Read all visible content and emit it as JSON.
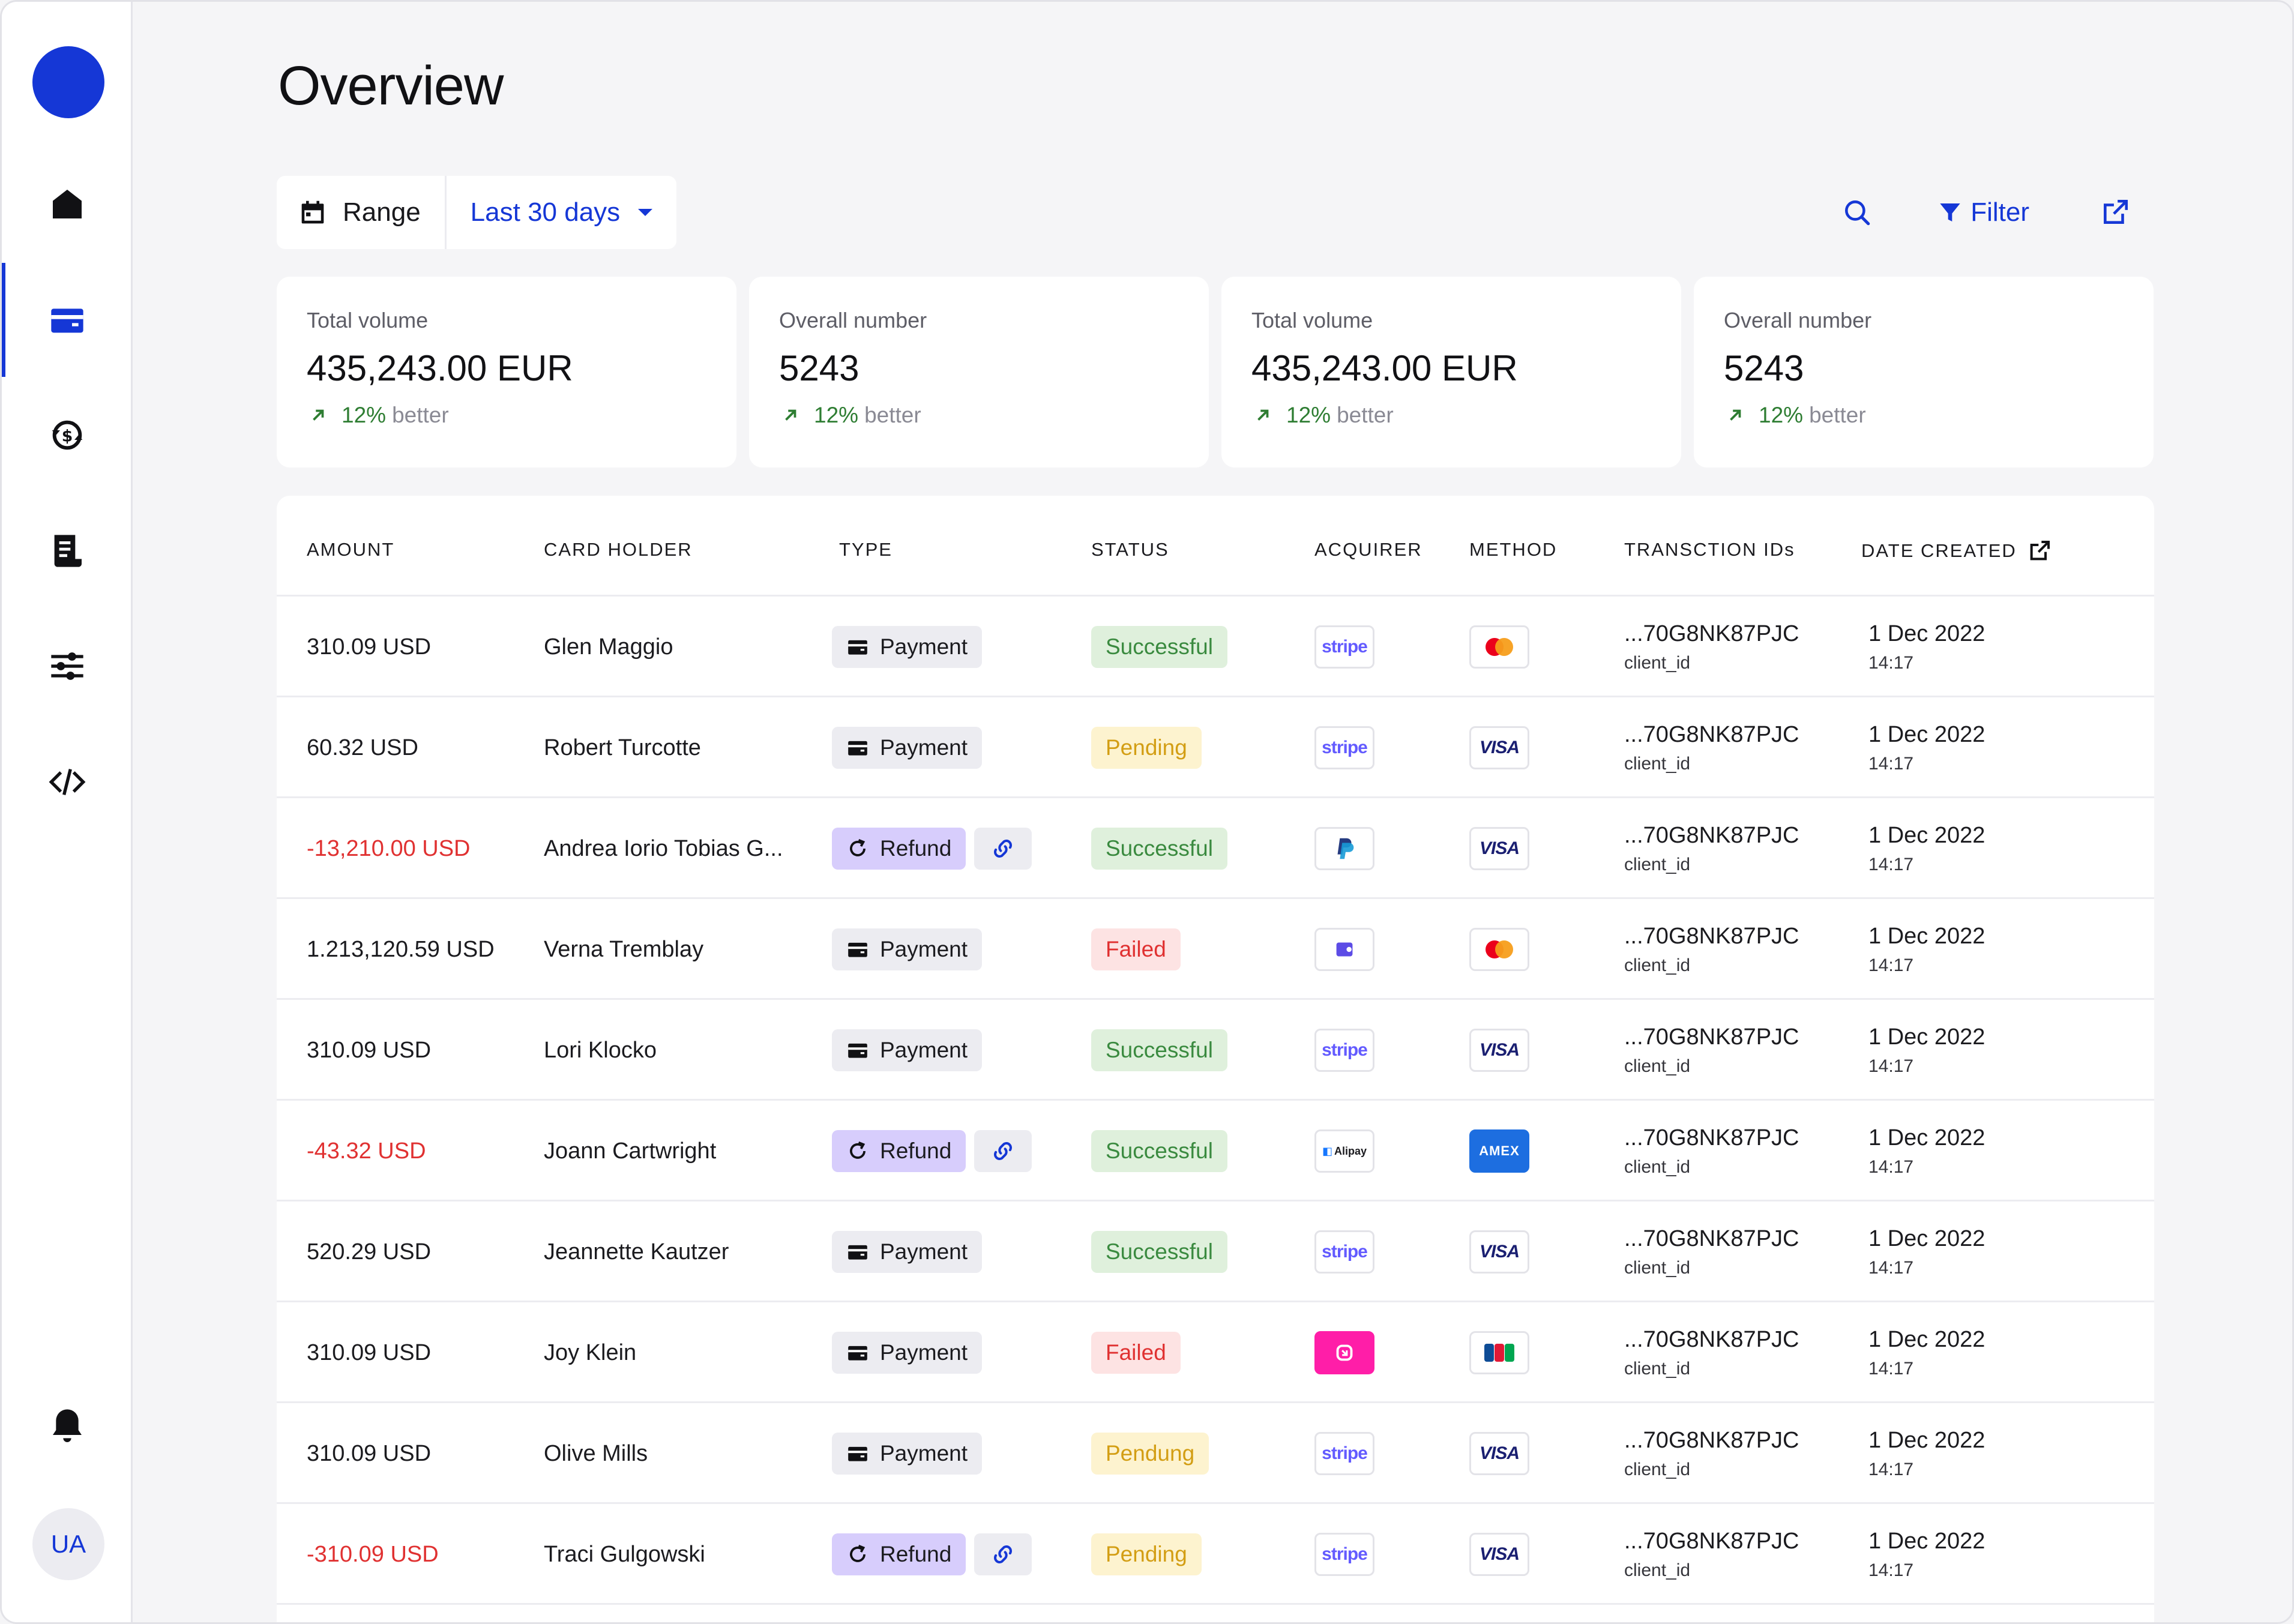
{
  "page": {
    "title": "Overview"
  },
  "sidebar": {
    "items": [
      {
        "name": "home-icon"
      },
      {
        "name": "wallet-icon",
        "active": true
      },
      {
        "name": "currency-exchange-icon"
      },
      {
        "name": "receipt-icon"
      },
      {
        "name": "sliders-icon"
      },
      {
        "name": "code-icon"
      }
    ],
    "notifications": "bell-icon",
    "avatar_initials": "UA"
  },
  "toolbar": {
    "range_label": "Range",
    "range_value": "Last 30 days",
    "filter_label": "Filter"
  },
  "stats": [
    {
      "label": "Total volume",
      "value": "435,243.00 EUR",
      "delta_pct": "12%",
      "delta_word": "better"
    },
    {
      "label": "Overall number",
      "value": "5243",
      "delta_pct": "12%",
      "delta_word": "better"
    },
    {
      "label": "Total volume",
      "value": "435,243.00 EUR",
      "delta_pct": "12%",
      "delta_word": "better"
    },
    {
      "label": "Overall number",
      "value": "5243",
      "delta_pct": "12%",
      "delta_word": "better"
    }
  ],
  "table": {
    "columns": [
      "AMOUNT",
      "CARD HOLDER",
      "TYPE",
      "STATUS",
      "ACQUIRER",
      "METHOD",
      "TRANSCTION IDs",
      "DATE CREATED"
    ],
    "rows": [
      {
        "amount": "310.09 USD",
        "negative": false,
        "holder": "Glen Maggio",
        "type": "Payment",
        "status": "Successful",
        "status_kind": "successful",
        "acquirer": "stripe",
        "method": "mastercard",
        "tx_id": "...70G8NK87PJC",
        "tx_sub": "client_id",
        "date": "1 Dec 2022",
        "time": "14:17"
      },
      {
        "amount": "60.32 USD",
        "negative": false,
        "holder": "Robert Turcotte",
        "type": "Payment",
        "status": "Pending",
        "status_kind": "pending",
        "acquirer": "stripe",
        "method": "visa",
        "tx_id": "...70G8NK87PJC",
        "tx_sub": "client_id",
        "date": "1 Dec 2022",
        "time": "14:17"
      },
      {
        "amount": "-13,210.00 USD",
        "negative": true,
        "holder": "Andrea Iorio Tobias G...",
        "type": "Refund",
        "status": "Successful",
        "status_kind": "successful",
        "acquirer": "paypal",
        "method": "visa",
        "tx_id": "...70G8NK87PJC",
        "tx_sub": "client_id",
        "date": "1 Dec 2022",
        "time": "14:17"
      },
      {
        "amount": "1.213,120.59 USD",
        "negative": false,
        "holder": "Verna Tremblay",
        "type": "Payment",
        "status": "Failed",
        "status_kind": "failed",
        "acquirer": "wallet",
        "method": "mastercard",
        "tx_id": "...70G8NK87PJC",
        "tx_sub": "client_id",
        "date": "1 Dec 2022",
        "time": "14:17"
      },
      {
        "amount": "310.09 USD",
        "negative": false,
        "holder": "Lori Klocko",
        "type": "Payment",
        "status": "Successful",
        "status_kind": "successful",
        "acquirer": "stripe",
        "method": "visa",
        "tx_id": "...70G8NK87PJC",
        "tx_sub": "client_id",
        "date": "1 Dec 2022",
        "time": "14:17"
      },
      {
        "amount": "-43.32 USD",
        "negative": true,
        "holder": "Joann Cartwright",
        "type": "Refund",
        "status": "Successful",
        "status_kind": "successful",
        "acquirer": "alipay",
        "method": "amex",
        "tx_id": "...70G8NK87PJC",
        "tx_sub": "client_id",
        "date": "1 Dec 2022",
        "time": "14:17"
      },
      {
        "amount": "520.29 USD",
        "negative": false,
        "holder": "Jeannette Kautzer",
        "type": "Payment",
        "status": "Successful",
        "status_kind": "successful",
        "acquirer": "stripe",
        "method": "visa",
        "tx_id": "...70G8NK87PJC",
        "tx_sub": "client_id",
        "date": "1 Dec 2022",
        "time": "14:17"
      },
      {
        "amount": "310.09 USD",
        "negative": false,
        "holder": "Joy Klein",
        "type": "Payment",
        "status": "Failed",
        "status_kind": "failed",
        "acquirer": "klarna",
        "method": "jcb",
        "tx_id": "...70G8NK87PJC",
        "tx_sub": "client_id",
        "date": "1 Dec 2022",
        "time": "14:17"
      },
      {
        "amount": "310.09 USD",
        "negative": false,
        "holder": "Olive Mills",
        "type": "Payment",
        "status": "Pendung",
        "status_kind": "pending",
        "acquirer": "stripe",
        "method": "visa",
        "tx_id": "...70G8NK87PJC",
        "tx_sub": "client_id",
        "date": "1 Dec 2022",
        "time": "14:17"
      },
      {
        "amount": "-310.09 USD",
        "negative": true,
        "holder": "Traci Gulgowski",
        "type": "Refund",
        "status": "Pending",
        "status_kind": "pending",
        "acquirer": "stripe",
        "method": "visa",
        "tx_id": "...70G8NK87PJC",
        "tx_sub": "client_id",
        "date": "1 Dec 2022",
        "time": "14:17"
      }
    ]
  },
  "logo_text": {
    "stripe": "stripe",
    "visa": "VISA",
    "amex": "AMEX",
    "alipay": "Alipay"
  },
  "colors": {
    "accent": "#1537d6",
    "negative": "#e03131",
    "success": "#3a8a3f",
    "pending": "#d39e14"
  }
}
